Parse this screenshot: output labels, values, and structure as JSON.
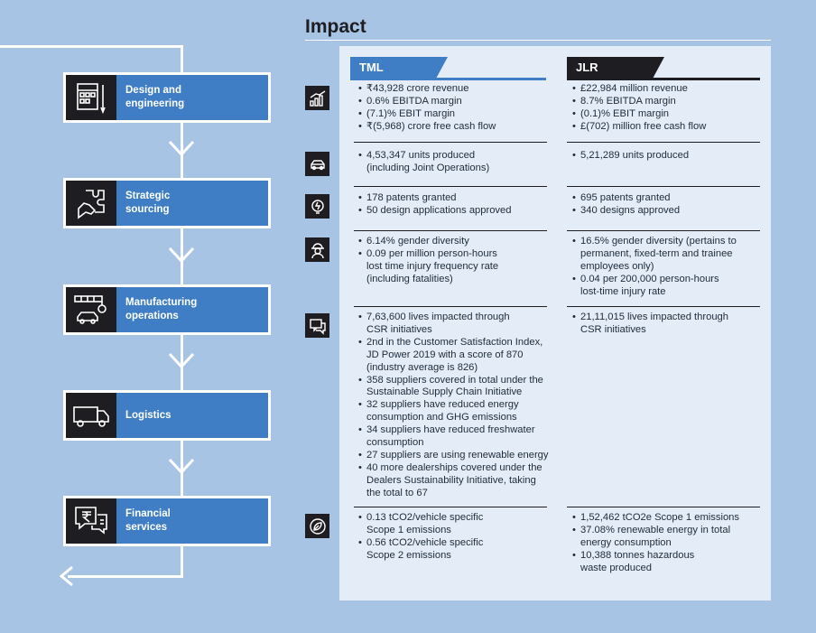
{
  "title": "Impact",
  "stages": [
    {
      "label": "Design and\nengineering",
      "icon": "design-blueprint-icon"
    },
    {
      "label": "Strategic\nsourcing",
      "icon": "puzzle-hand-icon"
    },
    {
      "label": "Manufacturing\noperations",
      "icon": "factory-car-icon"
    },
    {
      "label": "Logistics",
      "icon": "truck-icon"
    },
    {
      "label": "Financial\nservices",
      "icon": "rupee-chat-icon"
    }
  ],
  "columns": {
    "tml": "TML",
    "jlr": "JLR"
  },
  "colors": {
    "background": "#a7c4e4",
    "panel": "#e4edf7",
    "stage_blue": "#3f7ec4",
    "dark": "#1e1e22",
    "tml_accent": "#3f7ec4",
    "jlr_accent": "#1e1e22"
  },
  "rows": [
    {
      "icon": "bar-chart-icon",
      "tml": [
        "₹43,928 crore revenue",
        "0.6% EBITDA margin",
        "(7.1)% EBIT margin",
        "₹(5,968) crore free cash flow"
      ],
      "jlr": [
        "£22,984 million revenue",
        "8.7% EBITDA margin",
        "(0.1)% EBIT margin",
        "£(702) million free cash flow"
      ]
    },
    {
      "icon": "car-icon",
      "tml": [
        "4,53,347 units produced\n(including Joint Operations)"
      ],
      "jlr": [
        "5,21,289 units produced"
      ]
    },
    {
      "icon": "lightbulb-icon",
      "tml": [
        "178 patents granted",
        "50 design applications approved"
      ],
      "jlr": [
        "695 patents granted",
        "340 designs approved"
      ]
    },
    {
      "icon": "worker-icon",
      "tml": [
        "6.14% gender diversity",
        "0.09 per million person-hours\nlost time injury frequency rate\n(including fatalities)"
      ],
      "jlr": [
        "16.5% gender diversity (pertains to\npermanent, fixed-term and trainee\nemployees only)",
        "0.04 per 200,000 person-hours\nlost-time injury rate"
      ]
    },
    {
      "icon": "chat-icon",
      "tml": [
        "7,63,600 lives impacted through\nCSR initiatives",
        "2nd in the Customer Satisfaction Index,\nJD Power 2019 with a score of 870\n(industry average is 826)",
        "358 suppliers covered in total under the\nSustainable Supply Chain Initiative",
        "32 suppliers have reduced energy\nconsumption and GHG emissions",
        "34 suppliers have reduced freshwater\nconsumption",
        "27 suppliers are using renewable energy",
        "40 more dealerships covered under the\nDealers Sustainability Initiative, taking\nthe total to 67"
      ],
      "jlr": [
        "21,11,015 lives impacted through\nCSR initiatives"
      ]
    },
    {
      "icon": "leaf-icon",
      "tml": [
        "0.13 tCO2/vehicle specific\nScope 1 emissions",
        "0.56 tCO2/vehicle specific\nScope 2 emissions"
      ],
      "jlr": [
        "1,52,462 tCO2e Scope 1 emissions",
        "37.08% renewable energy in total\nenergy consumption",
        "10,388 tonnes hazardous\nwaste produced"
      ]
    }
  ]
}
